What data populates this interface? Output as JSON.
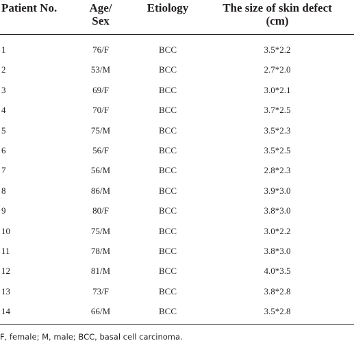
{
  "table": {
    "header": [
      [
        "Patient No."
      ],
      [
        "Age/",
        "Sex"
      ],
      [
        "Etiology"
      ],
      [
        "The size of skin defect",
        "(cm)"
      ]
    ],
    "rows": [
      [
        "1",
        "76/F",
        "BCC",
        "3.5*2.2"
      ],
      [
        "2",
        "53/M",
        "BCC",
        "2.7*2.0"
      ],
      [
        "3",
        "69/F",
        "BCC",
        "3.0*2.1"
      ],
      [
        "4",
        "70/F",
        "BCC",
        "3.7*2.5"
      ],
      [
        "5",
        "75/M",
        "BCC",
        "3.5*2.3"
      ],
      [
        "6",
        "56/F",
        "BCC",
        "3.5*2.5"
      ],
      [
        "7",
        "56/M",
        "BCC",
        "2.8*2.3"
      ],
      [
        "8",
        "86/M",
        "BCC",
        "3.9*3.0"
      ],
      [
        "9",
        "80/F",
        "BCC",
        "3.8*3.0"
      ],
      [
        "10",
        "75/M",
        "BCC",
        "3.0*2.2"
      ],
      [
        "11",
        "78/M",
        "BCC",
        "3.8*3.0"
      ],
      [
        "12",
        "81/M",
        "BCC",
        "4.0*3.5"
      ],
      [
        "13",
        "73/F",
        "BCC",
        "3.8*2.8"
      ],
      [
        "14",
        "66/M",
        "BCC",
        "3.5*2.8"
      ]
    ],
    "footnote": "F, female; M, male; BCC, basal cell carcinoma."
  }
}
